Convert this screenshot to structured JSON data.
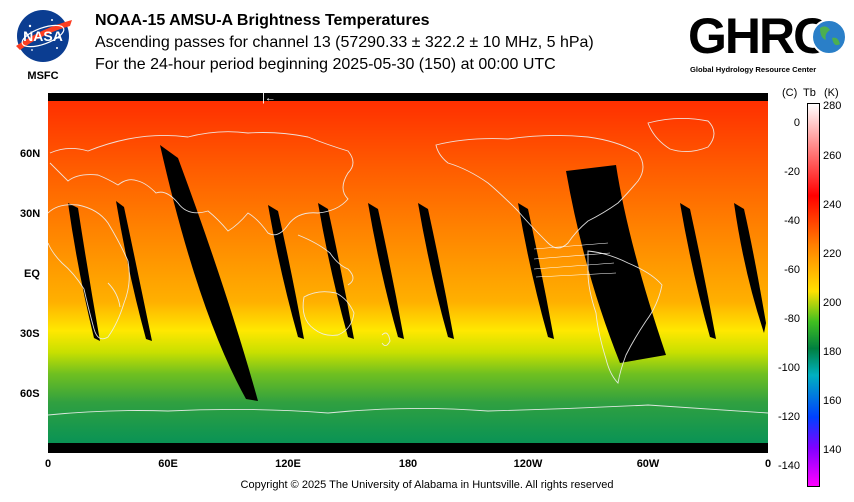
{
  "header": {
    "org_label": "MSFC",
    "title": "NOAA-15 AMSU-A Brightness Temperatures",
    "subtitle": "Ascending passes for channel 13 (57290.33 ± 322.2 ± 10 MHz, 5 hPa)",
    "period": "For the 24-hour period beginning 2025-05-30 (150) at 00:00 UTC"
  },
  "logos": {
    "nasa_text": "NASA",
    "ghrc_word": "GHRC",
    "ghrc_sub": "Global Hydrology Resource Center"
  },
  "map": {
    "lat_labels": [
      "60N",
      "30N",
      "EQ",
      "30S",
      "60S"
    ],
    "lon_labels": [
      "0",
      "60E",
      "120E",
      "180",
      "120W",
      "60W",
      "0"
    ],
    "arrow_glyph": "|←"
  },
  "colorbar": {
    "head_c": "(C)",
    "head_tb": "Tb",
    "head_k": "(K)",
    "c_ticks": [
      "0",
      "-20",
      "-40",
      "-60",
      "-80",
      "-100",
      "-120",
      "-140"
    ],
    "k_ticks": [
      "280",
      "260",
      "240",
      "220",
      "200",
      "180",
      "160",
      "140"
    ],
    "colors": [
      "#ffffff",
      "#ff0000",
      "#ff8000",
      "#ffe000",
      "#40c020",
      "#008040",
      "#00b0c0",
      "#0040ff",
      "#8000ff",
      "#ff00ff"
    ]
  },
  "footer": {
    "copyright": "Copyright © 2025 The University of Alabama in Huntsville.  All rights reserved"
  }
}
